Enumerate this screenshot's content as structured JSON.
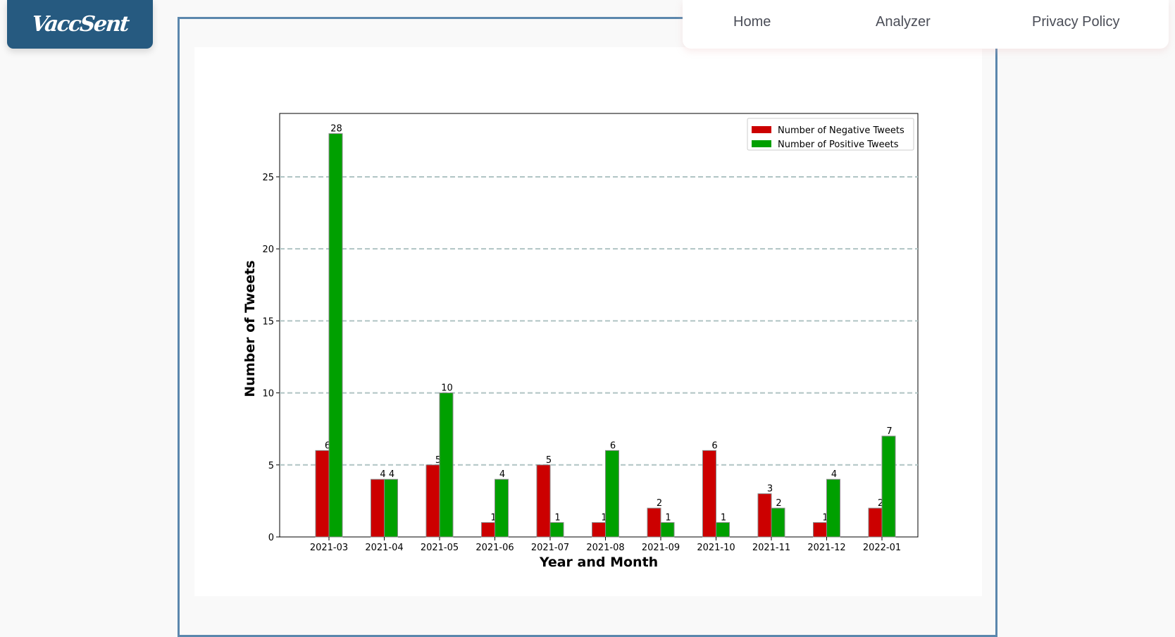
{
  "brand": {
    "name": "VaccSent"
  },
  "nav": {
    "home": "Home",
    "analyzer": "Analyzer",
    "privacy": "Privacy Policy"
  },
  "colors": {
    "negative": "#cc0000",
    "positive": "#00a000",
    "grid": "#b0c4c4",
    "brand": "#265a80",
    "frame": "#5b87ad"
  },
  "chart_data": {
    "type": "bar",
    "xlabel": "Year and Month",
    "ylabel": "Number of Tweets",
    "ylim": [
      0,
      29.4
    ],
    "yticks": [
      0,
      5,
      10,
      15,
      20,
      25
    ],
    "grid": "horizontal dashed",
    "legend_position": "top-right",
    "categories": [
      "2021-03",
      "2021-04",
      "2021-05",
      "2021-06",
      "2021-07",
      "2021-08",
      "2021-09",
      "2021-10",
      "2021-11",
      "2021-12",
      "2022-01"
    ],
    "series": [
      {
        "name": "Number of Negative Tweets",
        "color": "#cc0000",
        "values": [
          6,
          4,
          5,
          1,
          5,
          1,
          2,
          6,
          3,
          1,
          2
        ]
      },
      {
        "name": "Number of Positive Tweets",
        "color": "#00a000",
        "values": [
          28,
          4,
          10,
          4,
          1,
          6,
          1,
          1,
          2,
          4,
          7
        ]
      }
    ]
  }
}
